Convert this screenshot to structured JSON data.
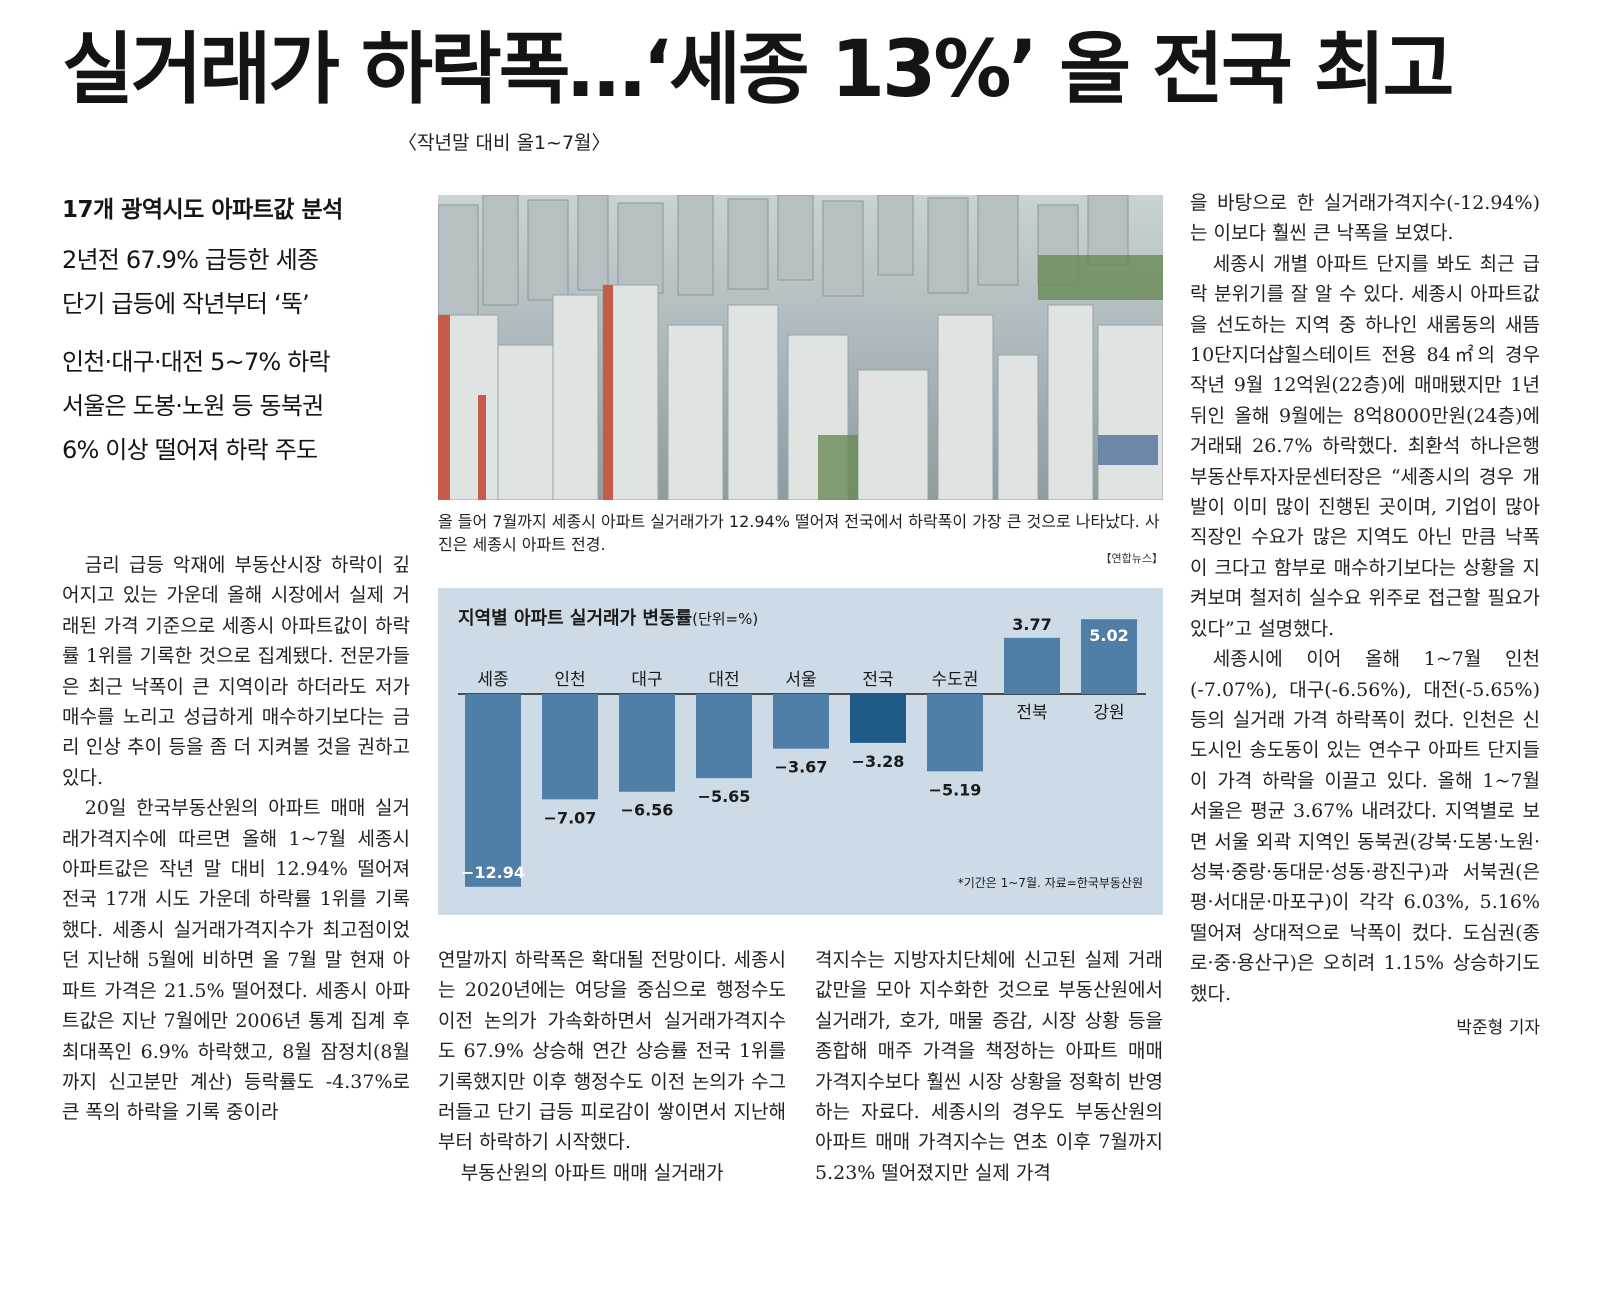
{
  "headline": "실거래가 하락폭…‘세종 13%’ 올 전국 최고",
  "subhead": "〈작년말 대비 올1~7월〉",
  "decks": {
    "main": "17개 광역시도 아파트값 분석",
    "lines1": [
      "2년전 67.9% 급등한 세종",
      "단기 급등에 작년부터 ‘뚝’"
    ],
    "lines2": [
      "인천·대구·대전 5~7% 하락",
      "서울은 도봉·노원 등 동북권",
      "6% 이상 떨어져 하락 주도"
    ]
  },
  "photo": {
    "caption": "올 들어 7월까지 세종시 아파트 실거래가가 12.94% 떨어져 전국에서 하락폭이 가장 큰 것으로 나타났다. 사진은 세종시 아파트 전경.",
    "credit": "【연합뉴스】"
  },
  "columns": {
    "left": [
      "금리 급등 악재에 부동산시장 하락이 깊어지고 있는 가운데 올해 시장에서 실제 거래된 가격 기준으로 세종시 아파트값이 하락률 1위를 기록한 것으로 집계됐다. 전문가들은 최근 낙폭이 큰 지역이라 하더라도 저가 매수를 노리고 성급하게 매수하기보다는 금리 인상 추이 등을 좀 더 지켜볼 것을 권하고 있다.",
      "20일 한국부동산원의 아파트 매매 실거래가격지수에 따르면 올해 1~7월 세종시 아파트값은 작년 말 대비 12.94% 떨어져 전국 17개 시도 가운데 하락률 1위를 기록했다. 세종시 실거래가격지수가 최고점이었던 지난해 5월에 비하면 올 7월 말 현재 아파트 가격은 21.5% 떨어졌다. 세종시 아파트값은 지난 7월에만 2006년 통계 집계 후 최대폭인 6.9% 하락했고, 8월 잠정치(8월까지 신고분만 계산) 등락률도 -4.37%로 큰 폭의 하락을 기록 중이라"
    ],
    "mid1": [
      "연말까지 하락폭은 확대될 전망이다. 세종시는 2020년에는 여당을 중심으로 행정수도 이전 논의가 가속화하면서 실거래가격지수도 67.9% 상승해 연간 상승률 전국 1위를 기록했지만 이후 행정수도 이전 논의가 수그러들고 단기 급등 피로감이 쌓이면서 지난해부터 하락하기 시작했다.",
      "부동산원의 아파트 매매 실거래가"
    ],
    "mid2": [
      "격지수는 지방자치단체에 신고된 실제 거래값만을 모아 지수화한 것으로 부동산원에서 실거래가, 호가, 매물 증감, 시장 상황 등을 종합해 매주 가격을 책정하는 아파트 매매 가격지수보다 훨씬 시장 상황을 정확히 반영하는 자료다. 세종시의 경우도 부동산원의 아파트 매매 가격지수는 연초 이후 7월까지 5.23% 떨어졌지만 실제 가격"
    ],
    "right": [
      "을 바탕으로 한 실거래가격지수(-12.94%)는 이보다 훨씬 큰 낙폭을 보였다.",
      "세종시 개별 아파트 단지를 봐도 최근 급락 분위기를 잘 알 수 있다. 세종시 아파트값을 선도하는 지역 중 하나인 새롬동의 새뜸10단지더샵힐스테이트 전용 84㎡의 경우 작년 9월 12억원(22층)에 매매됐지만 1년 뒤인 올해 9월에는 8억8000만원(24층)에 거래돼 26.7% 하락했다. 최환석 하나은행 부동산투자자문센터장은 “세종시의 경우 개발이 이미 많이 진행된 곳이며, 기업이 많아 직장인 수요가 많은 지역도 아닌 만큼 낙폭이 크다고 함부로 매수하기보다는 상황을 지켜보며 철저히 실수요 위주로 접근할 필요가 있다”고 설명했다.",
      "세종시에 이어 올해 1~7월 인천(-7.07%), 대구(-6.56%), 대전(-5.65%) 등의 실거래 가격 하락폭이 컸다. 인천은 신도시인 송도동이 있는 연수구 아파트 단지들이 가격 하락을 이끌고 있다. 올해 1~7월 서울은 평균 3.67% 내려갔다. 지역별로 보면 서울 외곽 지역인 동북권(강북·도봉·노원·성북·중랑·동대문·성동·광진구)과 서북권(은평·서대문·마포구)이 각각 6.03%, 5.16% 떨어져 상대적으로 낙폭이 컸다. 도심권(종로·중·용산구)은 오히려 1.15% 상승하기도 했다."
    ],
    "byline": "박준형 기자"
  },
  "chart_data": {
    "type": "bar",
    "title": "지역별 아파트 실거래가 변동률",
    "unit": "(단위=%)",
    "source": "*기간은 1~7월. 자료=한국부동산원",
    "categories": [
      "세종",
      "인천",
      "대구",
      "대전",
      "서울",
      "전국",
      "수도권",
      "전북",
      "강원"
    ],
    "values": [
      -12.94,
      -7.07,
      -6.56,
      -5.65,
      -3.67,
      -3.28,
      -5.19,
      3.77,
      5.02
    ],
    "value_labels": [
      "−12.94",
      "−7.07",
      "−6.56",
      "−5.65",
      "−3.67",
      "−3.28",
      "−5.19",
      "3.77",
      "5.02"
    ],
    "highlight": "전국",
    "colors": {
      "bar": "#4f7ea6",
      "highlight": "#1f5b86",
      "background": "#cddbe7"
    },
    "ylim": [
      -13,
      5.5
    ]
  }
}
